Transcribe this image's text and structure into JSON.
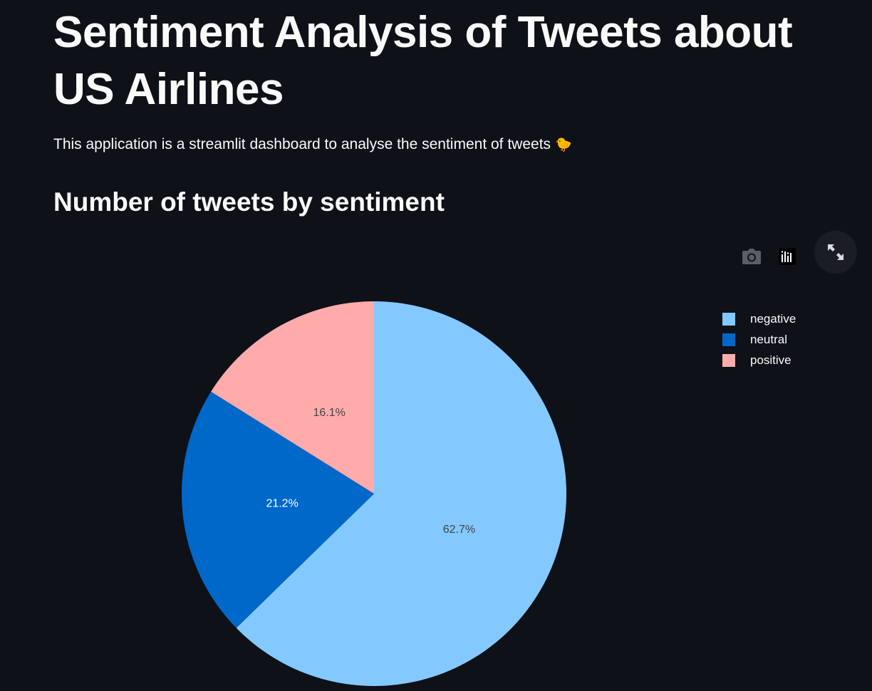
{
  "page": {
    "title": "Sentiment Analysis of Tweets about US Airlines",
    "intro": "This application is a streamlit dashboard to analyse the sentiment of tweets",
    "intro_emoji": "🐤",
    "section_title": "Number of tweets by sentiment"
  },
  "toolbar": {
    "icons": [
      "camera-icon",
      "plotly-logo-icon",
      "fullscreen-icon"
    ]
  },
  "colors": {
    "background": "#0e1117",
    "negative": "#83c9ff",
    "neutral": "#0068c9",
    "positive": "#ffabab"
  },
  "chart_data": {
    "type": "pie",
    "title": "",
    "labels": [
      "negative",
      "neutral",
      "positive"
    ],
    "values": [
      62.7,
      21.2,
      16.1
    ],
    "text_labels": [
      "62.7%",
      "21.2%",
      "16.1%"
    ],
    "colors": [
      "#83c9ff",
      "#0068c9",
      "#ffabab"
    ],
    "label_colors": [
      "#444444",
      "#ffffff",
      "#444444"
    ],
    "legend": {
      "position": "top-right",
      "entries": [
        "negative",
        "neutral",
        "positive"
      ]
    }
  }
}
